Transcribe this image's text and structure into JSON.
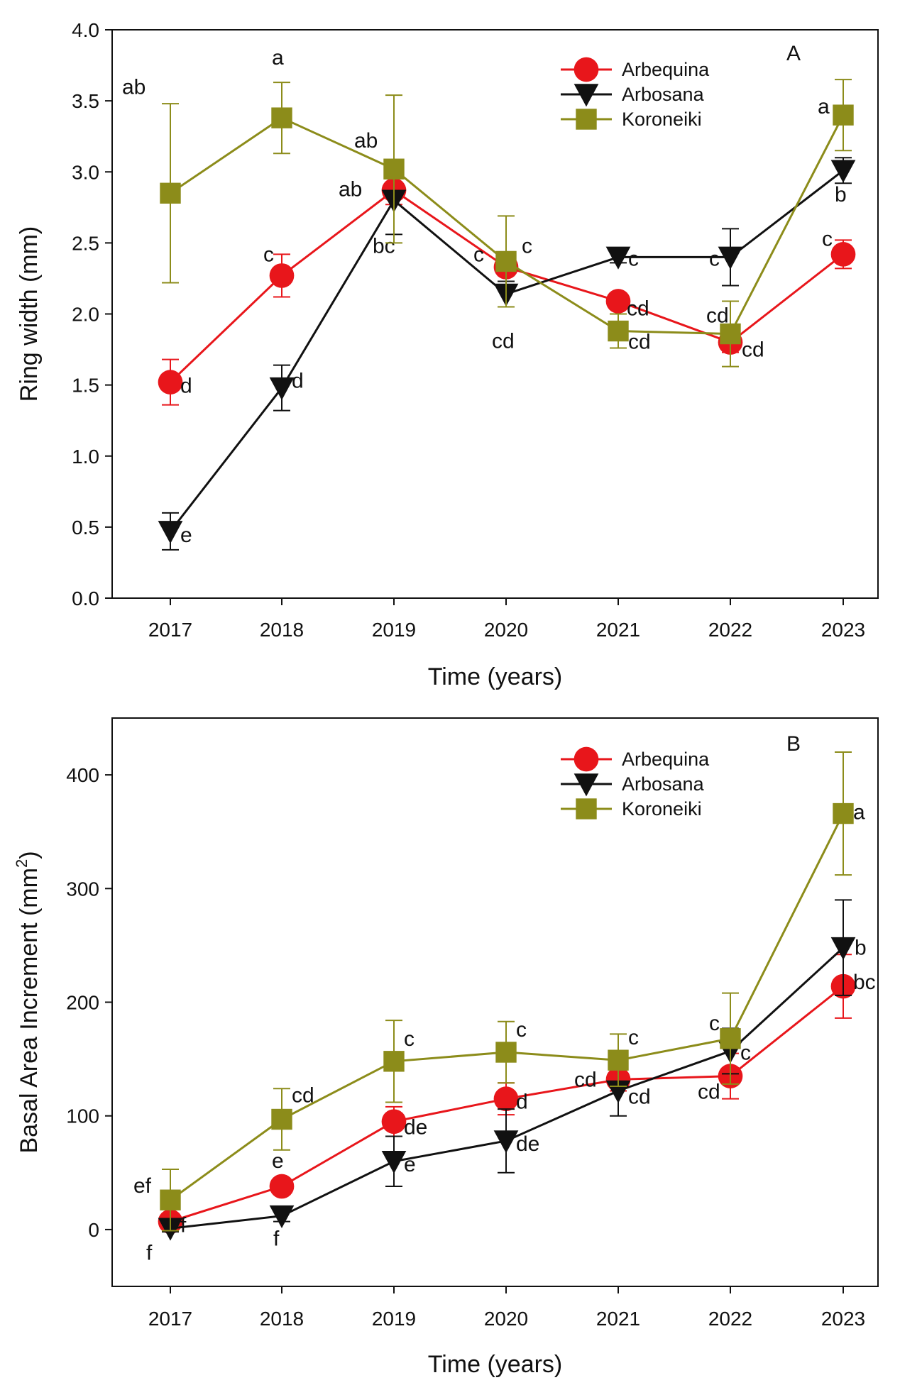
{
  "chart_data": [
    {
      "type": "line",
      "panel_label": "A",
      "xlabel": "Time (years)",
      "ylabel": "Ring width (mm)",
      "categories": [
        "2017",
        "2018",
        "2019",
        "2020",
        "2021",
        "2022",
        "2023"
      ],
      "ylim": [
        0,
        4
      ],
      "yticks": [
        "0.0",
        "0.5",
        "1.0",
        "1.5",
        "2.0",
        "2.5",
        "3.0",
        "3.5",
        "4.0"
      ],
      "legend_position": "top-center",
      "grid": false,
      "series": [
        {
          "name": "Arbequina",
          "color": "#e8161b",
          "marker": "circle",
          "values": [
            1.52,
            2.27,
            2.87,
            2.33,
            2.09,
            1.8,
            2.42
          ],
          "errors": [
            0.16,
            0.15,
            0.1,
            0.06,
            0.05,
            0.07,
            0.1
          ],
          "labels": [
            "d",
            "c",
            "ab",
            "c",
            "cd",
            "cd",
            "c"
          ]
        },
        {
          "name": "Arbosana",
          "color": "#111111",
          "marker": "triangle-down",
          "values": [
            0.47,
            1.48,
            2.8,
            2.14,
            2.4,
            2.4,
            3.01
          ],
          "errors": [
            0.13,
            0.16,
            0.24,
            0.09,
            0.04,
            0.2,
            0.09
          ],
          "labels": [
            "e",
            "d",
            "bc",
            "cd",
            "c",
            "c",
            "b"
          ]
        },
        {
          "name": "Koroneiki",
          "color": "#8c8c1a",
          "marker": "square",
          "values": [
            2.85,
            3.38,
            3.02,
            2.37,
            1.88,
            1.86,
            3.4
          ],
          "errors": [
            0.63,
            0.25,
            0.52,
            0.32,
            0.12,
            0.23,
            0.25
          ],
          "labels": [
            "ab",
            "a",
            "ab",
            "c",
            "cd",
            "cd",
            "a"
          ]
        }
      ]
    },
    {
      "type": "line",
      "panel_label": "B",
      "xlabel": "Time (years)",
      "ylabel": "Basal Area Increment (mm",
      "ylabel_superscript": "2",
      "ylabel_close": ")",
      "categories": [
        "2017",
        "2018",
        "2019",
        "2020",
        "2021",
        "2022",
        "2023"
      ],
      "ylim": [
        -50,
        450
      ],
      "yticks": [
        "0",
        "100",
        "200",
        "300",
        "400"
      ],
      "legend_position": "top-center",
      "grid": false,
      "series": [
        {
          "name": "Arbequina",
          "color": "#e8161b",
          "marker": "circle",
          "values": [
            7,
            38,
            95,
            115,
            132,
            135,
            214
          ],
          "errors": [
            5,
            6,
            13,
            14,
            10,
            20,
            28
          ],
          "labels": [
            "f",
            "e",
            "de",
            "d",
            "cd",
            "cd",
            "bc"
          ]
        },
        {
          "name": "Arbosana",
          "color": "#111111",
          "marker": "triangle-down",
          "values": [
            1,
            12,
            60,
            78,
            122,
            157,
            248
          ],
          "errors": [
            3,
            5,
            22,
            28,
            22,
            20,
            42
          ],
          "labels": [
            "f",
            "f",
            "e",
            "de",
            "cd",
            "c",
            "b"
          ]
        },
        {
          "name": "Koroneiki",
          "color": "#8c8c1a",
          "marker": "square",
          "values": [
            26,
            97,
            148,
            156,
            149,
            168,
            366
          ],
          "errors": [
            27,
            27,
            36,
            27,
            23,
            40,
            54
          ],
          "labels": [
            "ef",
            "cd",
            "c",
            "c",
            "c",
            "c",
            "a"
          ]
        }
      ]
    }
  ]
}
